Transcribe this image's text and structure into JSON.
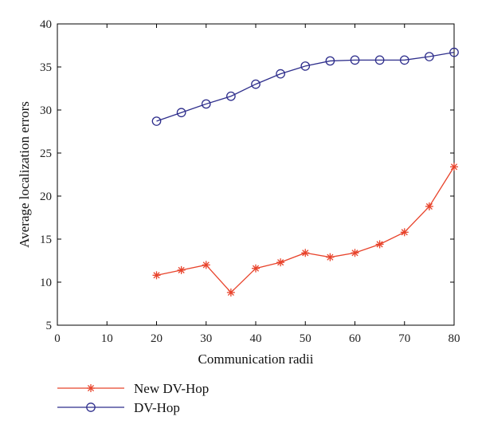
{
  "chart_data": {
    "type": "line",
    "xlabel": "Communication radii",
    "ylabel": "Average localization errors",
    "xlim": [
      0,
      80
    ],
    "ylim": [
      5,
      40
    ],
    "x_ticks": [
      0,
      10,
      20,
      30,
      40,
      50,
      60,
      70,
      80
    ],
    "y_ticks": [
      5,
      10,
      15,
      20,
      25,
      30,
      35,
      40
    ],
    "grid": false,
    "legend_placement": "bottom-left, below the plot",
    "x": [
      20,
      25,
      30,
      35,
      40,
      45,
      50,
      55,
      60,
      65,
      70,
      75,
      80
    ],
    "series": [
      {
        "name": "New DV-Hop",
        "color": "#e8432b",
        "marker": "asterisk",
        "values": [
          10.8,
          11.4,
          12.0,
          8.8,
          11.6,
          12.3,
          13.4,
          12.9,
          13.4,
          14.4,
          15.8,
          18.8,
          23.4
        ]
      },
      {
        "name": "DV-Hop",
        "color": "#2e2e8c",
        "marker": "circle",
        "values": [
          28.7,
          29.7,
          30.7,
          31.6,
          33.0,
          34.2,
          35.1,
          35.7,
          35.8,
          35.8,
          35.8,
          36.2,
          36.7
        ]
      }
    ]
  }
}
